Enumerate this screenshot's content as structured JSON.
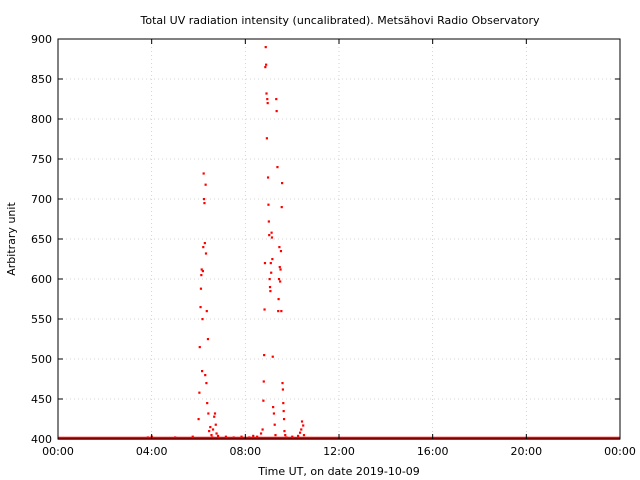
{
  "chart_data": {
    "type": "scatter",
    "title": "Total UV radiation intensity (uncalibrated). Metsähovi Radio Observatory",
    "xlabel": "Time UT, on date 2019-10-09",
    "ylabel": "Arbitrary unit",
    "xlim": [
      "00:00",
      "24:00"
    ],
    "ylim": [
      400,
      900
    ],
    "x_ticks": [
      "00:00",
      "04:00",
      "08:00",
      "12:00",
      "16:00",
      "20:00",
      "00:00"
    ],
    "y_ticks": [
      400,
      450,
      500,
      550,
      600,
      650,
      700,
      750,
      800,
      850,
      900
    ],
    "grid": true,
    "point_color": "#ff0000",
    "baseline": {
      "value": 401,
      "from": "00:00",
      "to": "24:00"
    },
    "series": [
      {
        "points": [
          [
            "03:50",
            402
          ],
          [
            "04:00",
            403
          ],
          [
            "05:00",
            402
          ],
          [
            "05:45",
            403
          ],
          [
            "06:00",
            425
          ],
          [
            "06:02",
            458
          ],
          [
            "06:03",
            515
          ],
          [
            "06:05",
            565
          ],
          [
            "06:06",
            588
          ],
          [
            "06:07",
            605
          ],
          [
            "06:08",
            612
          ],
          [
            "06:09",
            485
          ],
          [
            "06:10",
            550
          ],
          [
            "06:11",
            610
          ],
          [
            "06:12",
            640
          ],
          [
            "06:13",
            732
          ],
          [
            "06:14",
            700
          ],
          [
            "06:15",
            695
          ],
          [
            "06:16",
            645
          ],
          [
            "06:17",
            480
          ],
          [
            "06:18",
            718
          ],
          [
            "06:19",
            632
          ],
          [
            "06:20",
            470
          ],
          [
            "06:21",
            560
          ],
          [
            "06:22",
            445
          ],
          [
            "06:24",
            525
          ],
          [
            "06:25",
            432
          ],
          [
            "06:27",
            410
          ],
          [
            "06:30",
            415
          ],
          [
            "06:33",
            405
          ],
          [
            "06:35",
            402
          ],
          [
            "06:37",
            412
          ],
          [
            "06:40",
            428
          ],
          [
            "06:42",
            432
          ],
          [
            "06:44",
            418
          ],
          [
            "06:46",
            407
          ],
          [
            "06:50",
            404
          ],
          [
            "07:10",
            403
          ],
          [
            "07:30",
            402
          ],
          [
            "07:50",
            403
          ],
          [
            "08:10",
            402
          ],
          [
            "08:20",
            404
          ],
          [
            "08:30",
            403
          ],
          [
            "08:40",
            407
          ],
          [
            "08:44",
            412
          ],
          [
            "08:46",
            448
          ],
          [
            "08:47",
            472
          ],
          [
            "08:48",
            505
          ],
          [
            "08:49",
            562
          ],
          [
            "08:50",
            620
          ],
          [
            "08:51",
            865
          ],
          [
            "08:52",
            890
          ],
          [
            "08:53",
            868
          ],
          [
            "08:54",
            832
          ],
          [
            "08:55",
            776
          ],
          [
            "08:56",
            825
          ],
          [
            "08:57",
            820
          ],
          [
            "08:58",
            727
          ],
          [
            "08:59",
            693
          ],
          [
            "09:00",
            672
          ],
          [
            "09:01",
            655
          ],
          [
            "09:02",
            600
          ],
          [
            "09:03",
            590
          ],
          [
            "09:04",
            585
          ],
          [
            "09:05",
            620
          ],
          [
            "09:06",
            608
          ],
          [
            "09:07",
            658
          ],
          [
            "09:08",
            652
          ],
          [
            "09:09",
            625
          ],
          [
            "09:10",
            503
          ],
          [
            "09:11",
            440
          ],
          [
            "09:13",
            432
          ],
          [
            "09:15",
            418
          ],
          [
            "09:17",
            405
          ],
          [
            "09:19",
            825
          ],
          [
            "09:20",
            810
          ],
          [
            "09:22",
            740
          ],
          [
            "09:24",
            560
          ],
          [
            "09:25",
            575
          ],
          [
            "09:26",
            600
          ],
          [
            "09:27",
            640
          ],
          [
            "09:28",
            615
          ],
          [
            "09:29",
            597
          ],
          [
            "09:30",
            612
          ],
          [
            "09:31",
            635
          ],
          [
            "09:32",
            560
          ],
          [
            "09:33",
            690
          ],
          [
            "09:34",
            720
          ],
          [
            "09:35",
            470
          ],
          [
            "09:36",
            462
          ],
          [
            "09:37",
            445
          ],
          [
            "09:38",
            435
          ],
          [
            "09:39",
            425
          ],
          [
            "09:40",
            410
          ],
          [
            "09:42",
            405
          ],
          [
            "09:45",
            402
          ],
          [
            "10:00",
            403
          ],
          [
            "10:15",
            404
          ],
          [
            "10:20",
            408
          ],
          [
            "10:23",
            412
          ],
          [
            "10:25",
            422
          ],
          [
            "10:28",
            417
          ],
          [
            "10:30",
            405
          ]
        ]
      }
    ]
  }
}
